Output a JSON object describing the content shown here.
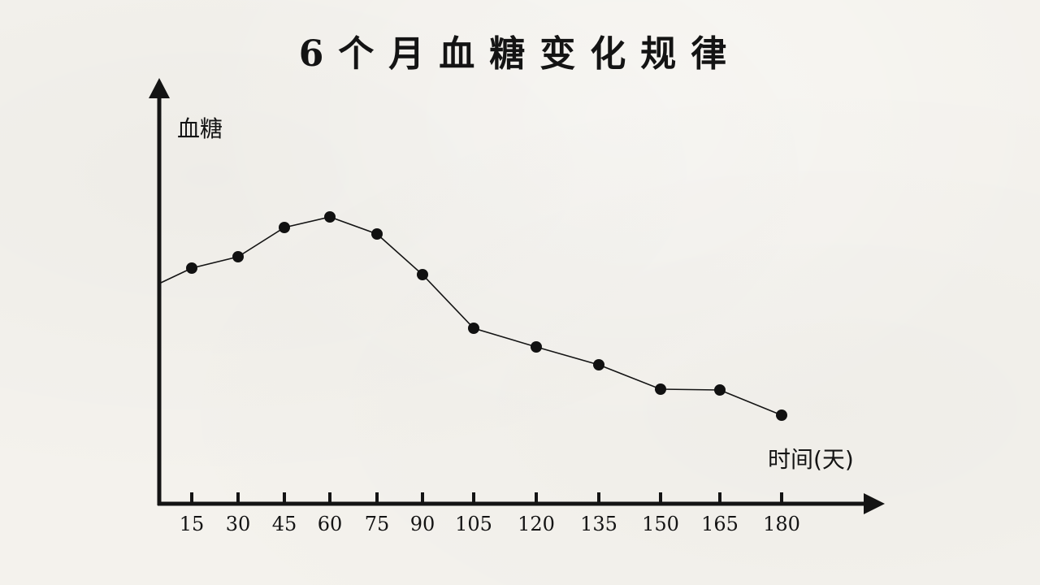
{
  "chart_data": {
    "type": "line",
    "title": "6个月血糖变化规律",
    "xlabel": "时间(天)",
    "ylabel": "血糖",
    "categories": [
      "15",
      "30",
      "45",
      "60",
      "75",
      "90",
      "105",
      "120",
      "135",
      "150",
      "165",
      "180"
    ],
    "x": [
      15,
      30,
      45,
      60,
      75,
      90,
      105,
      120,
      135,
      150,
      165,
      180
    ],
    "values": [
      29,
      30.4,
      34,
      35.3,
      33.2,
      28.2,
      21.6,
      19.3,
      17.1,
      14.1,
      14.0,
      10.9
    ],
    "line_start": {
      "x": 0,
      "y": 27.2
    },
    "ylim": [
      0,
      50
    ],
    "grid": false,
    "legend": "none",
    "line_color": "#141414",
    "marker_color": "#111111"
  }
}
